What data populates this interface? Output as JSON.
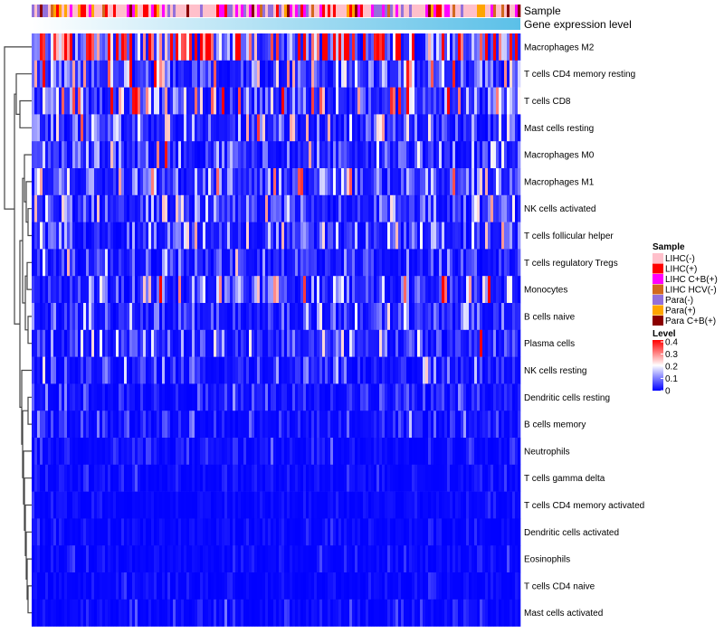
{
  "chart_data": {
    "type": "heatmap",
    "annotations": [
      "Sample",
      "Gene expression level"
    ],
    "rows": [
      "Macrophages M2",
      "T cells CD4 memory resting",
      "T cells CD8",
      "Mast cells resting",
      "Macrophages M0",
      "Macrophages M1",
      "NK cells activated",
      "T cells follicular helper",
      "T cells regulatory  Tregs",
      "Monocytes",
      "B cells naive",
      "Plasma cells",
      "NK cells resting",
      "Dendritic cells resting",
      "B cells memory",
      "Neutrophils",
      "T cells gamma delta",
      "T cells CD4 memory activated",
      "Dendritic cells activated",
      "Eosinophils",
      "T cells CD4 naive",
      "Mast cells activated"
    ],
    "row_mean_level_estimate": [
      0.3,
      0.12,
      0.14,
      0.08,
      0.07,
      0.09,
      0.08,
      0.08,
      0.05,
      0.1,
      0.06,
      0.07,
      0.04,
      0.03,
      0.03,
      0.02,
      0.015,
      0.01,
      0.01,
      0.01,
      0.01,
      0.015
    ],
    "sample_legend": {
      "title": "Sample",
      "entries": [
        {
          "label": "LIHC(-)",
          "color": "#ffc0cb"
        },
        {
          "label": "LIHC(+)",
          "color": "#ff0000"
        },
        {
          "label": "LIHC C+B(+)",
          "color": "#ff00ff"
        },
        {
          "label": "LIHC HCV(-)",
          "color": "#d2691e"
        },
        {
          "label": "Para(-)",
          "color": "#9370db"
        },
        {
          "label": "Para(+)",
          "color": "#ffa500"
        },
        {
          "label": "Para C+B(+)",
          "color": "#8b0000"
        }
      ]
    },
    "level_legend": {
      "title": "Level",
      "ticks": [
        "0.4",
        "0.3",
        "0.2",
        "0.1",
        "0"
      ],
      "range": [
        0,
        0.4
      ],
      "colors": {
        "low": "#0000ff",
        "mid": "#ffffff",
        "high": "#ff0000"
      }
    },
    "gene_expression_colors": {
      "low": "#ffffff",
      "high": "#5bc0e8"
    }
  }
}
